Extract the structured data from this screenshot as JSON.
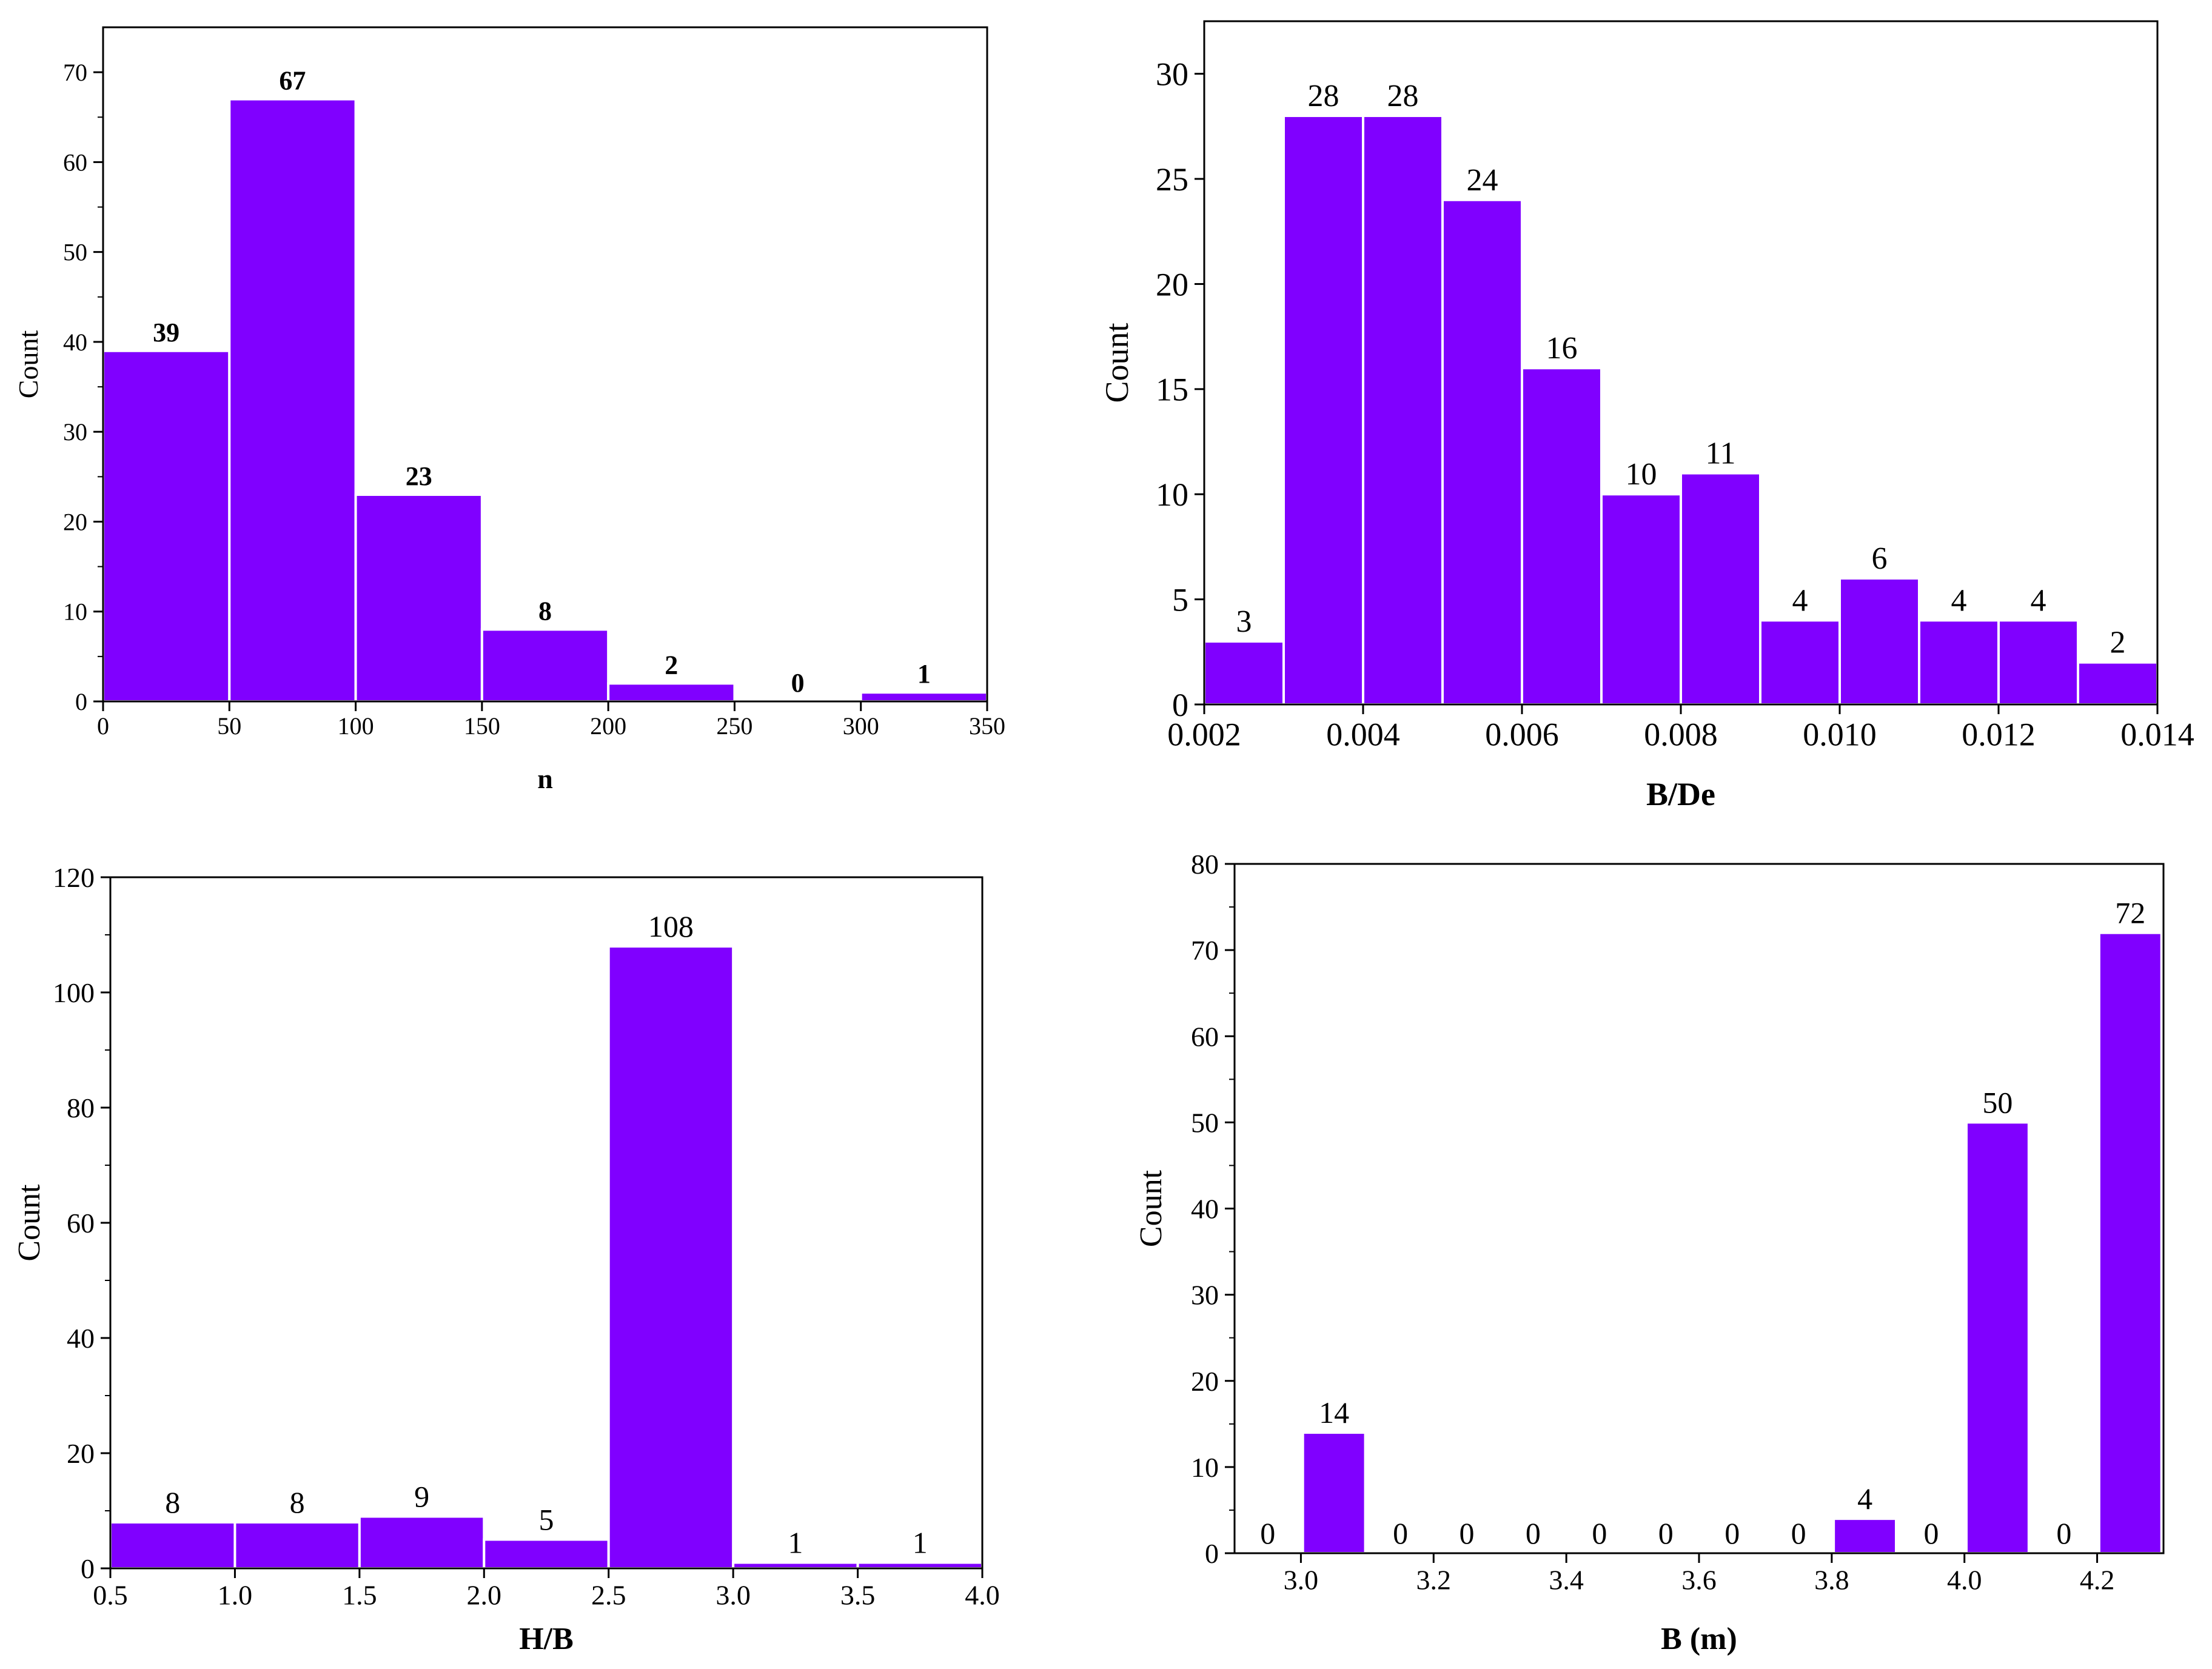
{
  "bar_color": "#8000ff",
  "chart_data": [
    {
      "id": "panel-n",
      "type": "bar",
      "xlabel": "n",
      "ylabel": "Count",
      "xlim": [
        0,
        350
      ],
      "ylim": [
        0,
        75
      ],
      "x_ticks": [
        0,
        50,
        100,
        150,
        200,
        250,
        300,
        350
      ],
      "x_tick_labels": [
        "0",
        "50",
        "100",
        "150",
        "200",
        "250",
        "300",
        "350"
      ],
      "y_ticks": [
        0,
        10,
        20,
        30,
        40,
        50,
        60,
        70
      ],
      "y_tick_labels": [
        "0",
        "10",
        "20",
        "30",
        "40",
        "50",
        "60",
        "70"
      ],
      "bins": [
        [
          0,
          50
        ],
        [
          50,
          100
        ],
        [
          100,
          150
        ],
        [
          150,
          200
        ],
        [
          200,
          250
        ],
        [
          250,
          300
        ],
        [
          300,
          350
        ]
      ],
      "values": [
        39,
        67,
        23,
        8,
        2,
        0,
        1
      ],
      "value_labels": [
        "39",
        "67",
        "23",
        "8",
        "2",
        "0",
        "1"
      ],
      "bold_labels": true
    },
    {
      "id": "panel-bde",
      "type": "bar",
      "xlabel": "B/De",
      "ylabel": "Count",
      "xlim": [
        0.002,
        0.014
      ],
      "ylim": [
        0,
        32.5
      ],
      "x_ticks": [
        0.002,
        0.004,
        0.006,
        0.008,
        0.01,
        0.012,
        0.014
      ],
      "x_tick_labels": [
        "0.002",
        "0.004",
        "0.006",
        "0.008",
        "0.010",
        "0.012",
        "0.014"
      ],
      "y_ticks": [
        0,
        5,
        10,
        15,
        20,
        25,
        30
      ],
      "y_tick_labels": [
        "0",
        "5",
        "10",
        "15",
        "20",
        "25",
        "30"
      ],
      "bins": [
        [
          0.002,
          0.003
        ],
        [
          0.003,
          0.004
        ],
        [
          0.004,
          0.005
        ],
        [
          0.005,
          0.006
        ],
        [
          0.006,
          0.007
        ],
        [
          0.007,
          0.008
        ],
        [
          0.008,
          0.009
        ],
        [
          0.009,
          0.01
        ],
        [
          0.01,
          0.011
        ],
        [
          0.011,
          0.012
        ],
        [
          0.012,
          0.013
        ],
        [
          0.013,
          0.014
        ]
      ],
      "values": [
        3,
        28,
        28,
        24,
        16,
        10,
        11,
        4,
        6,
        4,
        4,
        2
      ],
      "value_labels": [
        "3",
        "28",
        "28",
        "24",
        "16",
        "10",
        "11",
        "4",
        "6",
        "4",
        "4",
        "2"
      ],
      "bold_labels": false
    },
    {
      "id": "panel-hb",
      "type": "bar",
      "xlabel": "H/B",
      "ylabel": "Count",
      "xlim": [
        0.5,
        4.0
      ],
      "ylim": [
        0,
        120
      ],
      "x_ticks": [
        0.5,
        1.0,
        1.5,
        2.0,
        2.5,
        3.0,
        3.5,
        4.0
      ],
      "x_tick_labels": [
        "0.5",
        "1.0",
        "1.5",
        "2.0",
        "2.5",
        "3.0",
        "3.5",
        "4.0"
      ],
      "y_ticks": [
        0,
        20,
        40,
        60,
        80,
        100,
        120
      ],
      "y_tick_labels": [
        "0",
        "20",
        "40",
        "60",
        "80",
        "100",
        "120"
      ],
      "bins": [
        [
          0.5,
          1.0
        ],
        [
          1.0,
          1.5
        ],
        [
          1.5,
          2.0
        ],
        [
          2.0,
          2.5
        ],
        [
          2.5,
          3.0
        ],
        [
          3.0,
          3.5
        ],
        [
          3.5,
          4.0
        ]
      ],
      "values": [
        8,
        8,
        9,
        5,
        108,
        1,
        1
      ],
      "value_labels": [
        "8",
        "8",
        "9",
        "5",
        "108",
        "1",
        "1"
      ],
      "bold_labels": false
    },
    {
      "id": "panel-b",
      "type": "bar",
      "xlabel": "B (m)",
      "ylabel": "Count",
      "xlim": [
        2.9,
        4.3
      ],
      "ylim": [
        0,
        80
      ],
      "x_ticks": [
        3.0,
        3.2,
        3.4,
        3.6,
        3.8,
        4.0,
        4.2
      ],
      "x_tick_labels": [
        "3.0",
        "3.2",
        "3.4",
        "3.6",
        "3.8",
        "4.0",
        "4.2"
      ],
      "y_ticks": [
        0,
        10,
        20,
        30,
        40,
        50,
        60,
        70,
        80
      ],
      "y_tick_labels": [
        "0",
        "10",
        "20",
        "30",
        "40",
        "50",
        "60",
        "70",
        "80"
      ],
      "bins": [
        [
          2.9,
          3.0
        ],
        [
          3.0,
          3.1
        ],
        [
          3.1,
          3.2
        ],
        [
          3.2,
          3.3
        ],
        [
          3.3,
          3.4
        ],
        [
          3.4,
          3.5
        ],
        [
          3.5,
          3.6
        ],
        [
          3.6,
          3.7
        ],
        [
          3.7,
          3.8
        ],
        [
          3.8,
          3.9
        ],
        [
          3.9,
          4.0
        ],
        [
          4.0,
          4.1
        ],
        [
          4.1,
          4.2
        ],
        [
          4.2,
          4.3
        ]
      ],
      "values": [
        0,
        14,
        0,
        0,
        0,
        0,
        0,
        0,
        0,
        4,
        0,
        50,
        0,
        72
      ],
      "value_labels": [
        "0",
        "14",
        "0",
        "0",
        "0",
        "0",
        "0",
        "0",
        "0",
        "4",
        "0",
        "50",
        "0",
        "72"
      ],
      "bold_labels": false
    }
  ]
}
